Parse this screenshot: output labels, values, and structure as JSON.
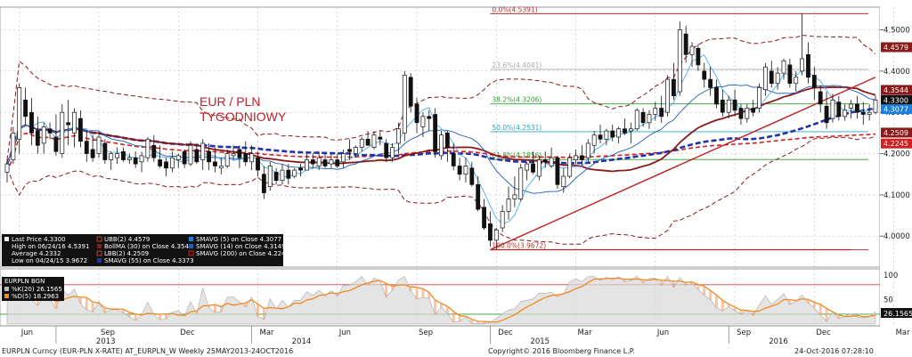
{
  "chart_data": {
    "type": "candlestick",
    "instrument": "EURPLN Curncy (EUR-PLN X-RATE)",
    "annotation": [
      "EUR / PLN",
      "TYGODNIOWY"
    ],
    "footer": {
      "left": "EURPLN Curncy (EUR-PLN X-RATE) AT_EURPLN_W  Weekly 25MAY2013-24OCT2016",
      "center": "Copyright© 2016 Bloomberg Finance L.P.",
      "right": "24-Oct-2016 07:28:10"
    },
    "price_axis": {
      "ylim": [
        3.925,
        4.555
      ],
      "ticks": [
        {
          "value": 4.5,
          "label": "4.5000"
        },
        {
          "value": 4.4,
          "label": "4.4000"
        },
        {
          "value": 4.3,
          "label": "4.3000"
        },
        {
          "value": 4.2,
          "label": "4.2000"
        },
        {
          "value": 4.1,
          "label": "4.1000"
        },
        {
          "value": 4.0,
          "label": "4.0000"
        }
      ]
    },
    "x_axis": {
      "months": [
        "Jun",
        "Sep",
        "Dec",
        "Mar",
        "Jun",
        "Sep",
        "Dec",
        "Mar",
        "Jun",
        "Sep",
        "Dec",
        "Mar",
        "Jun",
        "Sep"
      ],
      "years": [
        {
          "label": "2013"
        },
        {
          "label": "2014"
        },
        {
          "label": "2015"
        },
        {
          "label": "2016"
        }
      ]
    },
    "fibonacci": [
      {
        "label": "0.0%(4.5391)",
        "value": 4.5391,
        "color": "#b03030"
      },
      {
        "label": "23.6%(4.4041)",
        "value": 4.4041,
        "color": "#aaaaaa"
      },
      {
        "label": "38.2%(4.3206)",
        "value": 4.3206,
        "color": "#2e9a2e"
      },
      {
        "label": "50.0%(4.2531)",
        "value": 4.2531,
        "color": "#2aa6c8"
      },
      {
        "label": "61.8%(4.1856)",
        "value": 4.1856,
        "color": "#2e9a2e"
      },
      {
        "label": "100.0%(3.9672)",
        "value": 3.9672,
        "color": "#b03030"
      }
    ],
    "badges": [
      {
        "label": "4.4579",
        "value": 4.4579,
        "color": "#8b1a1a"
      },
      {
        "label": "4.3544",
        "value": 4.3544,
        "color": "#8b1a1a"
      },
      {
        "label": "4.3300",
        "value": 4.33,
        "color": "#111111"
      },
      {
        "label": "4.3077",
        "value": 4.3077,
        "color": "#1e7fd8"
      },
      {
        "label": "4.2509",
        "value": 4.2509,
        "color": "#8b1a1a"
      },
      {
        "label": "4.2245",
        "value": 4.2245,
        "color": "#d22020"
      }
    ],
    "legend": {
      "col1": [
        "Last Price  4.3300",
        "High on 06/24/16  4.5391",
        "Average  4.2332",
        "Low on 04/24/15  3.9672"
      ],
      "col2": [
        "UBB(2)  4.4579",
        "BollMA (30) on Close  4.3544",
        "LBB(2)  4.2509",
        "SMAVG (55) on Close  4.3373"
      ],
      "col3": [
        "SMAVG (5) on Close  4.3077",
        "SMAVG (14) on Close  4.3149",
        "SMAVG (200) on Close  4.2245"
      ]
    },
    "oscillator": {
      "header": "EURPLN BGN",
      "entries": [
        "%K(20)  26.1565",
        "%D(5)  18.2963"
      ],
      "badge": "26.1565",
      "ylim": [
        0,
        105
      ],
      "ticks": [
        {
          "value": 100,
          "label": "100"
        },
        {
          "value": 50,
          "label": "50"
        }
      ],
      "levels": [
        80,
        20
      ]
    },
    "price_series": {
      "ohlc": [
        [
          4.155,
          4.185,
          4.13,
          4.175
        ],
        [
          4.185,
          4.265,
          4.175,
          4.25
        ],
        [
          4.235,
          4.37,
          4.2,
          4.36
        ],
        [
          4.33,
          4.36,
          4.27,
          4.29
        ],
        [
          4.3,
          4.335,
          4.22,
          4.25
        ],
        [
          4.255,
          4.29,
          4.2,
          4.22
        ],
        [
          4.225,
          4.275,
          4.2,
          4.265
        ],
        [
          4.26,
          4.275,
          4.235,
          4.25
        ],
        [
          4.24,
          4.295,
          4.195,
          4.205
        ],
        [
          4.2,
          4.32,
          4.19,
          4.3
        ],
        [
          4.275,
          4.33,
          4.22,
          4.27
        ],
        [
          4.25,
          4.31,
          4.215,
          4.3
        ],
        [
          4.285,
          4.305,
          4.215,
          4.23
        ],
        [
          4.23,
          4.255,
          4.18,
          4.2
        ],
        [
          4.21,
          4.245,
          4.18,
          4.19
        ],
        [
          4.2,
          4.25,
          4.19,
          4.24
        ],
        [
          4.225,
          4.235,
          4.175,
          4.185
        ],
        [
          4.185,
          4.205,
          4.16,
          4.2
        ],
        [
          4.19,
          4.215,
          4.175,
          4.2
        ],
        [
          4.205,
          4.215,
          4.18,
          4.185
        ],
        [
          4.185,
          4.2,
          4.175,
          4.19
        ],
        [
          4.19,
          4.205,
          4.165,
          4.175
        ],
        [
          4.18,
          4.205,
          4.155,
          4.195
        ],
        [
          4.19,
          4.24,
          4.18,
          4.235
        ],
        [
          4.22,
          4.245,
          4.18,
          4.19
        ],
        [
          4.185,
          4.22,
          4.165,
          4.17
        ],
        [
          4.18,
          4.19,
          4.145,
          4.165
        ],
        [
          4.165,
          4.205,
          4.155,
          4.19
        ],
        [
          4.185,
          4.2,
          4.165,
          4.195
        ],
        [
          4.205,
          4.21,
          4.165,
          4.175
        ],
        [
          4.175,
          4.23,
          4.17,
          4.22
        ],
        [
          4.21,
          4.225,
          4.175,
          4.18
        ],
        [
          4.185,
          4.235,
          4.16,
          4.225
        ],
        [
          4.205,
          4.225,
          4.16,
          4.18
        ],
        [
          4.18,
          4.215,
          4.155,
          4.17
        ],
        [
          4.165,
          4.19,
          4.15,
          4.17
        ],
        [
          4.17,
          4.21,
          4.165,
          4.2
        ],
        [
          4.195,
          4.22,
          4.185,
          4.2
        ],
        [
          4.21,
          4.22,
          4.165,
          4.19
        ],
        [
          4.2,
          4.23,
          4.17,
          4.18
        ],
        [
          4.18,
          4.22,
          4.16,
          4.2
        ],
        [
          4.19,
          4.205,
          4.145,
          4.16
        ],
        [
          4.15,
          4.17,
          4.09,
          4.105
        ],
        [
          4.12,
          4.18,
          4.11,
          4.17
        ],
        [
          4.155,
          4.165,
          4.125,
          4.135
        ],
        [
          4.135,
          4.175,
          4.125,
          4.16
        ],
        [
          4.16,
          4.175,
          4.125,
          4.14
        ],
        [
          4.145,
          4.165,
          4.14,
          4.16
        ],
        [
          4.165,
          4.175,
          4.145,
          4.16
        ],
        [
          4.16,
          4.2,
          4.16,
          4.185
        ],
        [
          4.185,
          4.2,
          4.165,
          4.175
        ],
        [
          4.17,
          4.205,
          4.16,
          4.19
        ],
        [
          4.185,
          4.2,
          4.165,
          4.17
        ],
        [
          4.175,
          4.2,
          4.165,
          4.185
        ],
        [
          4.185,
          4.2,
          4.165,
          4.17
        ],
        [
          4.18,
          4.21,
          4.165,
          4.2
        ],
        [
          4.21,
          4.235,
          4.185,
          4.205
        ],
        [
          4.2,
          4.22,
          4.19,
          4.215
        ],
        [
          4.215,
          4.24,
          4.205,
          4.235
        ],
        [
          4.235,
          4.255,
          4.22,
          4.22
        ],
        [
          4.215,
          4.255,
          4.21,
          4.245
        ],
        [
          4.24,
          4.255,
          4.22,
          4.235
        ],
        [
          4.225,
          4.235,
          4.18,
          4.19
        ],
        [
          4.19,
          4.225,
          4.18,
          4.215
        ],
        [
          4.225,
          4.275,
          4.2,
          4.26
        ],
        [
          4.25,
          4.4,
          4.23,
          4.39
        ],
        [
          4.385,
          4.395,
          4.3,
          4.315
        ],
        [
          4.32,
          4.335,
          4.25,
          4.275
        ],
        [
          4.265,
          4.3,
          4.24,
          4.29
        ],
        [
          4.29,
          4.305,
          4.255,
          4.285
        ],
        [
          4.295,
          4.31,
          4.19,
          4.205
        ],
        [
          4.195,
          4.255,
          4.185,
          4.245
        ],
        [
          4.25,
          4.255,
          4.18,
          4.215
        ],
        [
          4.2,
          4.225,
          4.16,
          4.17
        ],
        [
          4.17,
          4.19,
          4.135,
          4.15
        ],
        [
          4.15,
          4.19,
          4.13,
          4.17
        ],
        [
          4.165,
          4.18,
          4.12,
          4.125
        ],
        [
          4.125,
          4.145,
          4.06,
          4.065
        ],
        [
          4.07,
          4.09,
          4.015,
          4.02
        ],
        [
          4.03,
          4.06,
          3.975,
          3.99
        ],
        [
          3.99,
          4.02,
          3.967,
          4.015
        ],
        [
          4.02,
          4.075,
          4.01,
          4.06
        ],
        [
          4.06,
          4.12,
          4.04,
          4.09
        ],
        [
          4.09,
          4.145,
          4.07,
          4.1
        ],
        [
          4.09,
          4.175,
          4.085,
          4.165
        ],
        [
          4.16,
          4.18,
          4.135,
          4.175
        ],
        [
          4.175,
          4.205,
          4.15,
          4.155
        ],
        [
          4.145,
          4.195,
          4.135,
          4.185
        ],
        [
          4.185,
          4.205,
          4.165,
          4.18
        ],
        [
          4.17,
          4.215,
          4.165,
          4.19
        ],
        [
          4.19,
          4.195,
          4.115,
          4.125
        ],
        [
          4.12,
          4.165,
          4.105,
          4.145
        ],
        [
          4.145,
          4.2,
          4.14,
          4.19
        ],
        [
          4.185,
          4.21,
          4.175,
          4.195
        ],
        [
          4.195,
          4.22,
          4.17,
          4.185
        ],
        [
          4.19,
          4.235,
          4.18,
          4.225
        ],
        [
          4.22,
          4.255,
          4.2,
          4.245
        ],
        [
          4.245,
          4.27,
          4.225,
          4.235
        ],
        [
          4.235,
          4.26,
          4.22,
          4.255
        ],
        [
          4.255,
          4.27,
          4.23,
          4.24
        ],
        [
          4.24,
          4.265,
          4.225,
          4.26
        ],
        [
          4.26,
          4.285,
          4.245,
          4.25
        ],
        [
          4.255,
          4.275,
          4.225,
          4.26
        ],
        [
          4.26,
          4.31,
          4.255,
          4.305
        ],
        [
          4.3,
          4.31,
          4.265,
          4.275
        ],
        [
          4.275,
          4.305,
          4.26,
          4.295
        ],
        [
          4.295,
          4.325,
          4.28,
          4.31
        ],
        [
          4.31,
          4.34,
          4.275,
          4.29
        ],
        [
          4.3,
          4.39,
          4.29,
          4.38
        ],
        [
          4.38,
          4.42,
          4.33,
          4.34
        ],
        [
          4.35,
          4.52,
          4.34,
          4.5
        ],
        [
          4.49,
          4.51,
          4.42,
          4.44
        ],
        [
          4.44,
          4.47,
          4.41,
          4.46
        ],
        [
          4.455,
          4.465,
          4.4,
          4.415
        ],
        [
          4.4,
          4.42,
          4.36,
          4.38
        ],
        [
          4.38,
          4.41,
          4.34,
          4.36
        ],
        [
          4.36,
          4.38,
          4.31,
          4.32
        ],
        [
          4.33,
          4.355,
          4.29,
          4.3
        ],
        [
          4.3,
          4.34,
          4.285,
          4.33
        ],
        [
          4.33,
          4.355,
          4.29,
          4.305
        ],
        [
          4.31,
          4.32,
          4.27,
          4.285
        ],
        [
          4.285,
          4.32,
          4.275,
          4.31
        ],
        [
          4.31,
          4.33,
          4.29,
          4.3
        ],
        [
          4.31,
          4.37,
          4.3,
          4.36
        ],
        [
          4.355,
          4.42,
          4.34,
          4.41
        ],
        [
          4.4,
          4.425,
          4.36,
          4.37
        ],
        [
          4.37,
          4.41,
          4.355,
          4.395
        ],
        [
          4.395,
          4.43,
          4.38,
          4.425
        ],
        [
          4.415,
          4.43,
          4.36,
          4.37
        ],
        [
          4.37,
          4.4,
          4.35,
          4.385
        ],
        [
          4.4,
          4.54,
          4.39,
          4.43
        ],
        [
          4.44,
          4.47,
          4.37,
          4.385
        ],
        [
          4.39,
          4.41,
          4.33,
          4.36
        ],
        [
          4.35,
          4.365,
          4.3,
          4.32
        ],
        [
          4.315,
          4.35,
          4.26,
          4.275
        ],
        [
          4.285,
          4.345,
          4.275,
          4.33
        ],
        [
          4.325,
          4.34,
          4.28,
          4.29
        ],
        [
          4.29,
          4.32,
          4.28,
          4.305
        ],
        [
          4.31,
          4.33,
          4.285,
          4.32
        ],
        [
          4.32,
          4.34,
          4.285,
          4.3
        ],
        [
          4.3,
          4.325,
          4.27,
          4.295
        ],
        [
          4.295,
          4.32,
          4.28,
          4.3
        ],
        [
          4.3,
          4.34,
          4.295,
          4.33
        ]
      ]
    }
  }
}
